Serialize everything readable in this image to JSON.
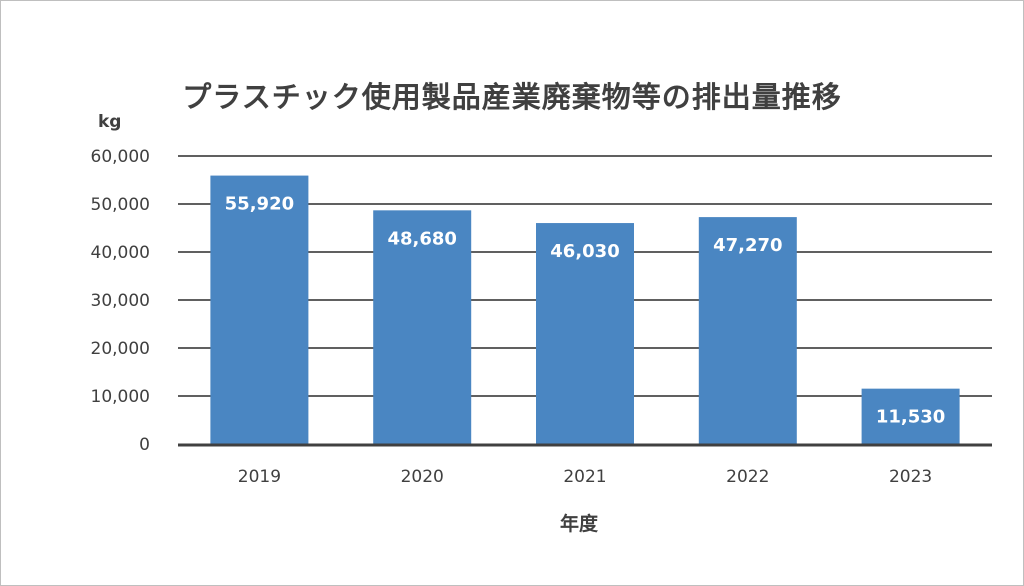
{
  "chart_data": {
    "type": "bar",
    "title": "プラスチック使用製品産業廃棄物等の排出量推移",
    "ylabel": "kg",
    "xlabel": "年度",
    "categories": [
      "2019",
      "2020",
      "2021",
      "2022",
      "2023"
    ],
    "values": [
      55920,
      48680,
      46030,
      47270,
      11530
    ],
    "data_labels": [
      "55,920",
      "48,680",
      "46,030",
      "47,270",
      "11,530"
    ],
    "ylim": [
      0,
      60000
    ],
    "yticks": [
      0,
      10000,
      20000,
      30000,
      40000,
      50000,
      60000
    ],
    "ytick_labels": [
      "0",
      "10,000",
      "20,000",
      "30,000",
      "40,000",
      "50,000",
      "60,000"
    ],
    "grid": true,
    "legend": "none",
    "bar_color": "#4a86c2"
  }
}
